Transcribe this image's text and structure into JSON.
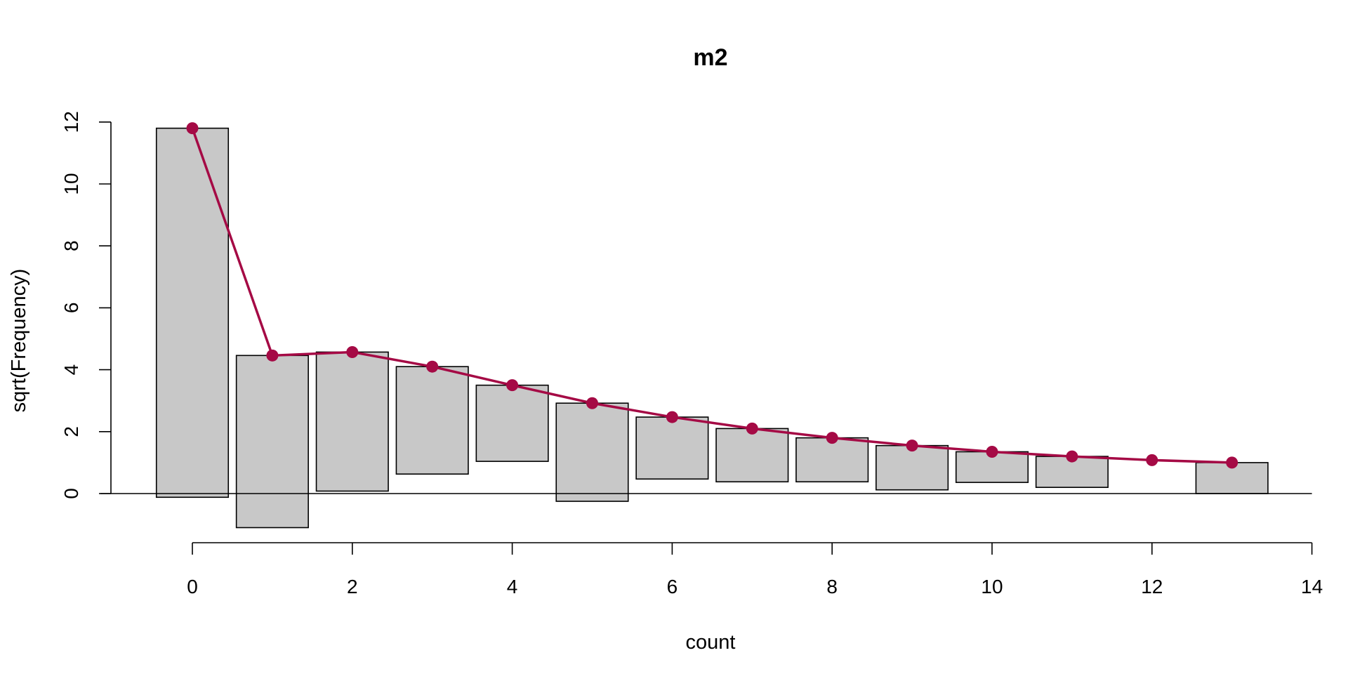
{
  "chart_data": {
    "type": "bar",
    "subtype": "hanging rootogram",
    "title": "m2",
    "xlabel": "count",
    "ylabel": "sqrt(Frequency)",
    "xlim": [
      -0.5,
      14
    ],
    "ylim": [
      -1.1,
      12.2
    ],
    "x_ticks": [
      0,
      2,
      4,
      6,
      8,
      10,
      12,
      14
    ],
    "y_ticks": [
      0,
      2,
      4,
      6,
      8,
      10,
      12
    ],
    "grid": false,
    "x": [
      0,
      1,
      2,
      3,
      4,
      5,
      6,
      7,
      8,
      9,
      10,
      11,
      12,
      13
    ],
    "bars": {
      "top": [
        11.8,
        4.46,
        4.57,
        4.1,
        3.5,
        2.92,
        2.47,
        2.1,
        1.8,
        1.55,
        1.35,
        1.2,
        1.08,
        1.0
      ],
      "bottom": [
        -0.12,
        -1.1,
        0.08,
        0.63,
        1.04,
        -0.25,
        0.47,
        0.38,
        0.38,
        0.12,
        0.36,
        0.2,
        1.08,
        0.0
      ]
    },
    "series": [
      {
        "values": [
          11.8,
          4.46,
          4.57,
          4.1,
          3.5,
          2.92,
          2.47,
          2.1,
          1.8,
          1.55,
          1.35,
          1.2,
          1.08,
          1.0
        ],
        "color": "#a50a45",
        "style": "line-with-points"
      }
    ],
    "colors": {
      "bar_fill": "#c8c8c8",
      "bar_stroke": "#000000",
      "fit": "#a50a45"
    }
  }
}
